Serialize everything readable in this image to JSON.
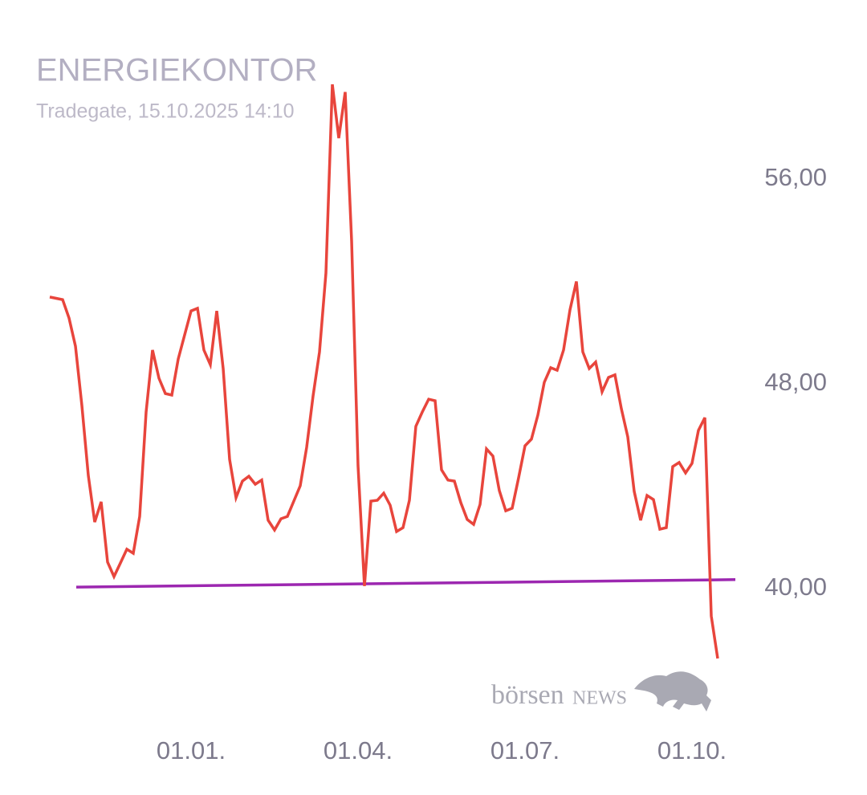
{
  "chart_data": {
    "type": "line",
    "title": "ENERGIEKONTOR",
    "subtitle": "Tradegate, 15.10.2025 14:10",
    "watermark": {
      "first": "börsen",
      "second": "NEWS"
    },
    "categories": [
      null,
      null,
      null,
      null,
      null,
      null,
      null,
      null,
      null,
      null,
      null,
      null,
      null,
      null,
      null,
      null,
      null,
      null,
      null,
      null,
      null,
      null,
      "01.01.",
      null,
      null,
      null,
      null,
      null,
      null,
      null,
      null,
      null,
      null,
      null,
      null,
      null,
      null,
      null,
      null,
      null,
      null,
      null,
      null,
      null,
      null,
      null,
      null,
      null,
      "01.04.",
      null,
      null,
      null,
      null,
      null,
      null,
      null,
      null,
      null,
      null,
      null,
      null,
      null,
      null,
      null,
      null,
      null,
      null,
      null,
      null,
      null,
      null,
      null,
      null,
      null,
      "01.07.",
      null,
      null,
      null,
      null,
      null,
      null,
      null,
      null,
      null,
      null,
      null,
      null,
      null,
      null,
      null,
      null,
      null,
      null,
      null,
      null,
      null,
      null,
      null,
      null,
      null,
      "01.10.",
      null,
      null,
      null,
      null
    ],
    "values": [
      51.39,
      51.34,
      51.29,
      50.57,
      49.47,
      47.15,
      44.42,
      42.6,
      43.39,
      41.04,
      40.47,
      41.0,
      41.54,
      41.38,
      42.82,
      46.9,
      49.32,
      48.22,
      47.62,
      47.56,
      48.97,
      49.91,
      50.85,
      50.95,
      49.32,
      48.75,
      50.85,
      48.6,
      45.05,
      43.55,
      44.2,
      44.39,
      44.08,
      44.24,
      42.67,
      42.29,
      42.73,
      42.82,
      43.42,
      44.02,
      45.52,
      47.53,
      49.25,
      52.33,
      59.7,
      57.6,
      59.4,
      53.58,
      44.8,
      40.1,
      43.42,
      43.45,
      43.73,
      43.26,
      42.23,
      42.38,
      43.45,
      46.34,
      46.9,
      47.4,
      47.34,
      44.64,
      44.24,
      44.2,
      43.36,
      42.7,
      42.51,
      43.29,
      45.46,
      45.18,
      43.83,
      43.04,
      43.14,
      44.33,
      45.58,
      45.84,
      46.78,
      48.06,
      48.63,
      48.53,
      49.32,
      50.89,
      52.0,
      49.25,
      48.6,
      48.85,
      47.69,
      48.25,
      48.35,
      47.03,
      45.93,
      43.8,
      42.67,
      43.64,
      43.48,
      42.32,
      42.38,
      44.77,
      44.93,
      44.52,
      44.89,
      46.18,
      46.68,
      38.93,
      37.27
    ],
    "color": "#e8453c",
    "trendline": {
      "color": "#9c27b0",
      "values": [
        40.06,
        40.35
      ]
    },
    "ylim": [
      36,
      60
    ],
    "yticks": [
      {
        "value": 40,
        "label": "40,00"
      },
      {
        "value": 48,
        "label": "48,00"
      },
      {
        "value": 56,
        "label": "56,00"
      }
    ],
    "grid": false
  }
}
